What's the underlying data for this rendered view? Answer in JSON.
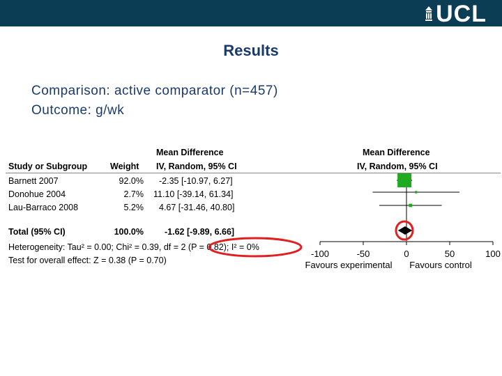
{
  "header": {
    "logo_text": "UCL",
    "colors": {
      "bar": "#0b3d55",
      "title": "#1a3a6e"
    }
  },
  "slide": {
    "title": "Results",
    "line1": "Comparison: active comparator (n=457)",
    "line2": "Outcome: g/wk"
  },
  "forest": {
    "columns": {
      "study": "Study or Subgroup",
      "weight": "Weight",
      "md_line1": "Mean Difference",
      "md_line2": "IV, Random, 95% CI",
      "plot_line1": "Mean Difference",
      "plot_line2": "IV, Random, 95% CI"
    },
    "studies": [
      {
        "name": "Barnett 2007",
        "weight": "92.0%",
        "ci": "-2.35 [-10.97, 6.27]"
      },
      {
        "name": "Donohue 2004",
        "weight": "2.7%",
        "ci": "11.10 [-39.14, 61.34]"
      },
      {
        "name": "Lau-Barraco 2008",
        "weight": "5.2%",
        "ci": "4.67 [-31.46, 40.80]"
      }
    ],
    "total": {
      "name": "Total (95% CI)",
      "weight": "100.0%",
      "ci": "-1.62 [-9.89, 6.66]"
    },
    "heterogeneity": "Heterogeneity: Tau² = 0.00; Chi² = 0.39, df = 2 (P = 0.82); I² = 0%",
    "overall_effect": "Test for overall effect: Z = 0.38 (P = 0.70)",
    "axis": {
      "ticks": [
        "-100",
        "-50",
        "0",
        "50",
        "100"
      ],
      "left_label": "Favours experimental",
      "right_label": "Favours control"
    },
    "colors": {
      "marker": "#1faa1f",
      "highlight": "#e02020"
    }
  },
  "chart_data": {
    "type": "forest",
    "xlim": [
      -100,
      100
    ],
    "xticks": [
      -100,
      -50,
      0,
      50,
      100
    ],
    "studies": [
      {
        "name": "Barnett 2007",
        "md": -2.35,
        "lo": -10.97,
        "hi": 6.27,
        "weight": 92.0
      },
      {
        "name": "Donohue 2004",
        "md": 11.1,
        "lo": -39.14,
        "hi": 61.34,
        "weight": 2.7
      },
      {
        "name": "Lau-Barraco 2008",
        "md": 4.67,
        "lo": -31.46,
        "hi": 40.8,
        "weight": 5.2
      }
    ],
    "pooled": {
      "md": -1.62,
      "lo": -9.89,
      "hi": 6.66
    }
  }
}
